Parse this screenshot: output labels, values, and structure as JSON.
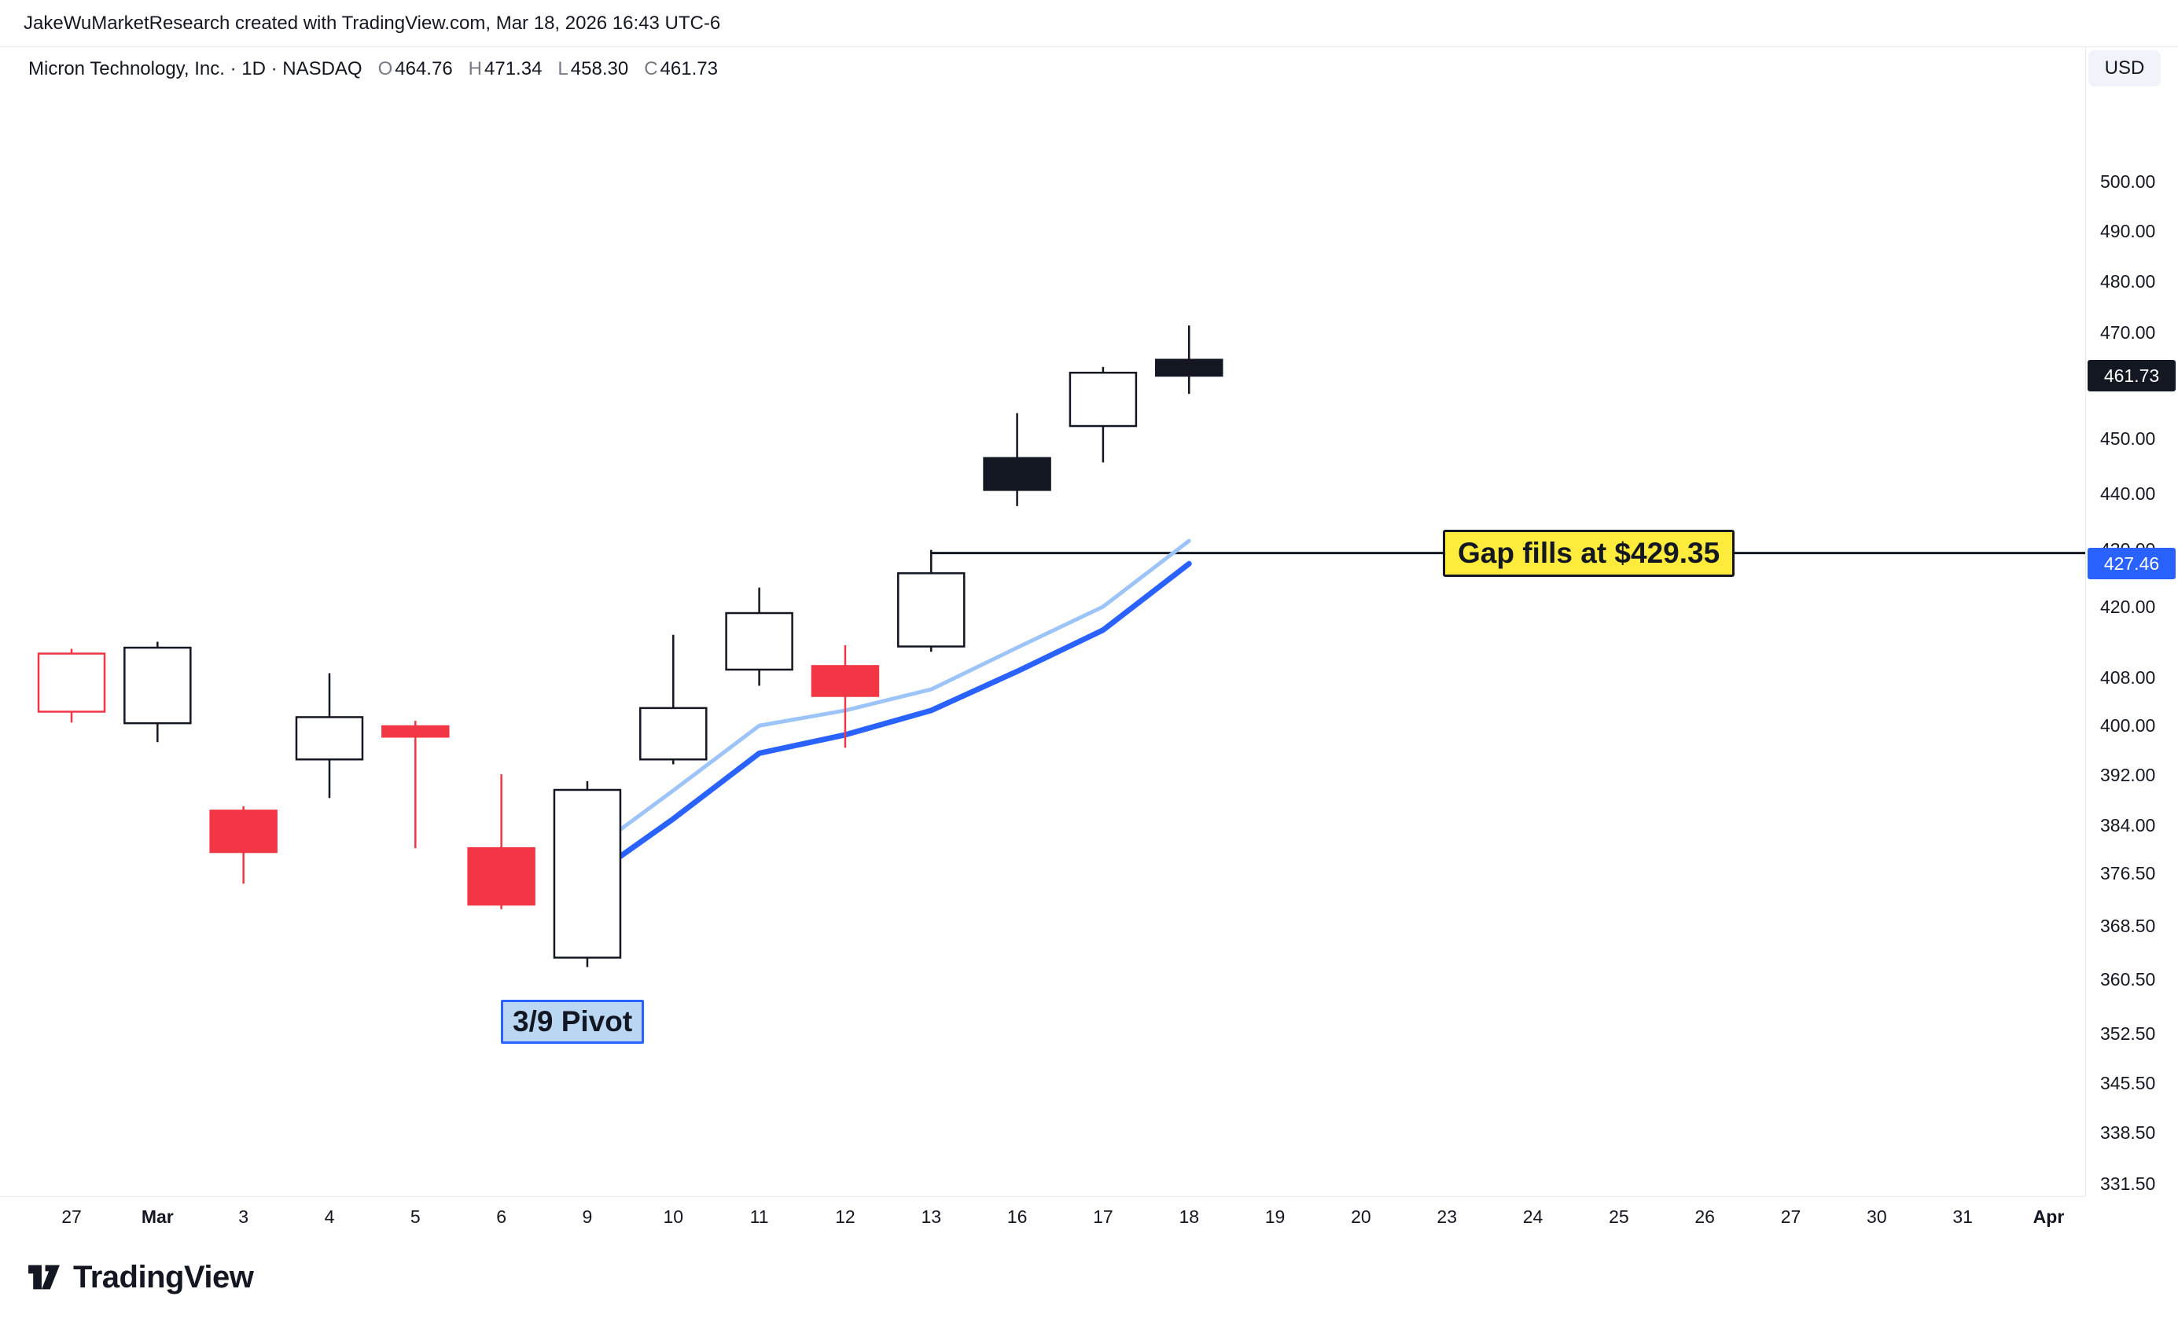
{
  "attribution": "JakeWuMarketResearch created with TradingView.com, Mar 18, 2026 16:43 UTC-6",
  "header": {
    "symbol_title": "Micron Technology, Inc. · 1D · NASDAQ",
    "ohlc": [
      {
        "label": "O",
        "value": "464.76"
      },
      {
        "label": "H",
        "value": "471.34"
      },
      {
        "label": "L",
        "value": "458.30"
      },
      {
        "label": "C",
        "value": "461.73"
      }
    ],
    "currency_button": "USD"
  },
  "chart_data": {
    "type": "candlestick",
    "symbol": "Micron Technology, Inc.",
    "interval": "1D",
    "exchange": "NASDAQ",
    "scale": "log",
    "ylim": [
      331.5,
      500
    ],
    "y_axis": {
      "ticks": [
        "500.00",
        "490.00",
        "480.00",
        "470.00",
        "460.00",
        "450.00",
        "440.00",
        "430.00",
        "420.00",
        "408.00",
        "400.00",
        "392.00",
        "384.00",
        "376.50",
        "368.50",
        "360.50",
        "352.50",
        "345.50",
        "338.50",
        "331.50"
      ]
    },
    "x_axis": {
      "labels": [
        {
          "t": "27"
        },
        {
          "t": "Mar",
          "bold": true
        },
        {
          "t": "3"
        },
        {
          "t": "4"
        },
        {
          "t": "5"
        },
        {
          "t": "6"
        },
        {
          "t": "9"
        },
        {
          "t": "10"
        },
        {
          "t": "11"
        },
        {
          "t": "12"
        },
        {
          "t": "13"
        },
        {
          "t": "16"
        },
        {
          "t": "17"
        },
        {
          "t": "18"
        },
        {
          "t": "19"
        },
        {
          "t": "20"
        },
        {
          "t": "23"
        },
        {
          "t": "24"
        },
        {
          "t": "25"
        },
        {
          "t": "26"
        },
        {
          "t": "27"
        },
        {
          "t": "30"
        },
        {
          "t": "31"
        },
        {
          "t": "Apr",
          "bold": true
        }
      ]
    },
    "candles": [
      {
        "date": "Feb 27",
        "o": 402.3,
        "h": 412.8,
        "l": 400.5,
        "c": 412.0,
        "style": "hollow-red"
      },
      {
        "date": "Mar 2",
        "o": 400.4,
        "h": 414.0,
        "l": 397.3,
        "c": 413.0,
        "style": "white"
      },
      {
        "date": "Mar 3",
        "o": 386.3,
        "h": 387.0,
        "l": 374.9,
        "c": 379.8,
        "style": "red"
      },
      {
        "date": "Mar 4",
        "o": 394.5,
        "h": 408.7,
        "l": 388.3,
        "c": 401.4,
        "style": "white"
      },
      {
        "date": "Mar 5",
        "o": 399.9,
        "h": 400.8,
        "l": 380.4,
        "c": 398.2,
        "style": "red"
      },
      {
        "date": "Mar 6",
        "o": 380.4,
        "h": 392.1,
        "l": 371.0,
        "c": 371.7,
        "style": "red"
      },
      {
        "date": "Mar 9",
        "o": 363.7,
        "h": 391.0,
        "l": 362.3,
        "c": 389.6,
        "style": "white"
      },
      {
        "date": "Mar 10",
        "o": 394.5,
        "h": 415.2,
        "l": 393.7,
        "c": 402.9,
        "style": "white"
      },
      {
        "date": "Mar 11",
        "o": 409.3,
        "h": 423.3,
        "l": 406.6,
        "c": 418.9,
        "style": "white"
      },
      {
        "date": "Mar 12",
        "o": 409.9,
        "h": 413.4,
        "l": 396.4,
        "c": 404.9,
        "style": "red"
      },
      {
        "date": "Mar 13",
        "o": 413.2,
        "h": 429.9,
        "l": 412.3,
        "c": 425.8,
        "style": "white"
      },
      {
        "date": "Mar 16",
        "o": 446.4,
        "h": 454.7,
        "l": 437.7,
        "c": 440.6,
        "style": "black"
      },
      {
        "date": "Mar 17",
        "o": 452.3,
        "h": 463.4,
        "l": 445.6,
        "c": 462.3,
        "style": "white"
      },
      {
        "date": "Mar 18",
        "o": 464.76,
        "h": 471.34,
        "l": 458.3,
        "c": 461.73,
        "style": "black"
      }
    ],
    "ma_lines": [
      {
        "name": "ma-fast",
        "color": "#9DC4F8",
        "width": 5,
        "points": [
          [
            6,
            379.5
          ],
          [
            7,
            389.5
          ],
          [
            8,
            400.0
          ],
          [
            9,
            402.5
          ],
          [
            10,
            406.0
          ],
          [
            11,
            413.0
          ],
          [
            12,
            420.0
          ],
          [
            13,
            431.5
          ]
        ]
      },
      {
        "name": "ma-slow",
        "color": "#2962FF",
        "width": 7,
        "points": [
          [
            6,
            375.5
          ],
          [
            7,
            385.0
          ],
          [
            8,
            395.5
          ],
          [
            9,
            398.5
          ],
          [
            10,
            402.5
          ],
          [
            11,
            409.0
          ],
          [
            12,
            416.0
          ],
          [
            13,
            427.46
          ]
        ]
      }
    ],
    "gap_line": {
      "price": 429.35,
      "start_bar": 10,
      "label": "Gap fills at $429.35"
    },
    "pivot_label": "3/9 Pivot",
    "price_badges": [
      {
        "value": "461.73",
        "price": 461.73,
        "bg": "#131722"
      },
      {
        "value": "427.46",
        "price": 427.46,
        "bg": "#2962FF"
      }
    ],
    "colors": {
      "up_fill": "#FFFFFF",
      "down_fill": "#131722",
      "red": "#F23645",
      "outline": "#131722"
    }
  },
  "footer": {
    "brand": "TradingView"
  }
}
